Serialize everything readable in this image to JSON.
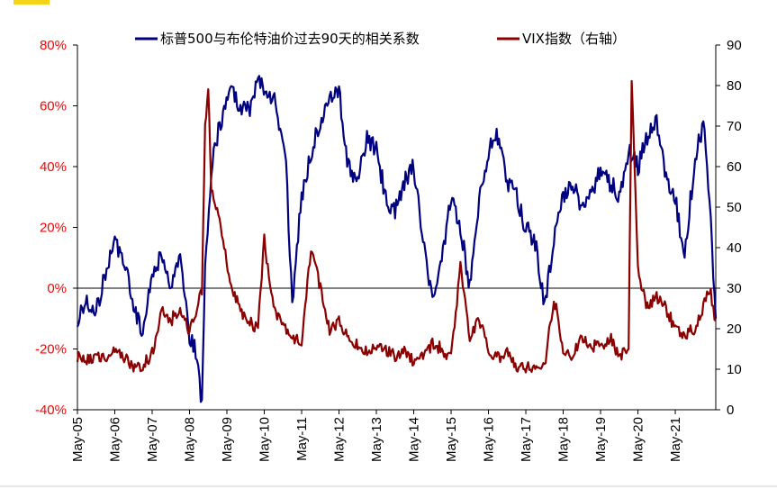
{
  "chart_data": {
    "type": "line",
    "title": "",
    "legend_position": "top",
    "grid": false,
    "x_tick_labels": [
      "May-05",
      "May-06",
      "May-07",
      "May-08",
      "May-09",
      "May-10",
      "May-11",
      "May-12",
      "May-13",
      "May-14",
      "May-15",
      "May-16",
      "May-17",
      "May-18",
      "May-19",
      "May-20",
      "May-21"
    ],
    "x_range": [
      "2005-05",
      "2022-06"
    ],
    "y_left": {
      "ticks": [
        "-40%",
        "-20%",
        "0%",
        "20%",
        "40%",
        "60%",
        "80%"
      ],
      "tick_values": [
        -40,
        -20,
        0,
        20,
        40,
        60,
        80
      ],
      "range": [
        -40,
        80
      ],
      "tick_color": "#ff0000"
    },
    "y_right": {
      "ticks": [
        "0",
        "10",
        "20",
        "30",
        "40",
        "50",
        "60",
        "70",
        "80",
        "90"
      ],
      "tick_values": [
        0,
        10,
        20,
        30,
        40,
        50,
        60,
        70,
        80,
        90
      ],
      "range": [
        0,
        90
      ]
    },
    "series": [
      {
        "name": "标普500与布伦特油价过去90天的相关系数",
        "axis": "left",
        "color": "#000080",
        "x": [
          "2005-05",
          "2005-08",
          "2005-11",
          "2006-02",
          "2006-05",
          "2006-08",
          "2006-11",
          "2007-02",
          "2007-05",
          "2007-08",
          "2007-11",
          "2008-02",
          "2008-05",
          "2008-07",
          "2008-09",
          "2008-10",
          "2008-12",
          "2009-03",
          "2009-06",
          "2009-09",
          "2009-12",
          "2010-03",
          "2010-06",
          "2010-09",
          "2010-12",
          "2011-02",
          "2011-05",
          "2011-08",
          "2011-11",
          "2012-02",
          "2012-05",
          "2012-08",
          "2012-11",
          "2013-02",
          "2013-05",
          "2013-08",
          "2013-11",
          "2014-02",
          "2014-05",
          "2014-08",
          "2014-11",
          "2015-02",
          "2015-05",
          "2015-08",
          "2015-11",
          "2016-02",
          "2016-05",
          "2016-08",
          "2016-11",
          "2017-02",
          "2017-05",
          "2017-08",
          "2017-11",
          "2018-02",
          "2018-05",
          "2018-08",
          "2018-11",
          "2019-02",
          "2019-05",
          "2019-08",
          "2019-11",
          "2020-02",
          "2020-05",
          "2020-08",
          "2020-11",
          "2021-02",
          "2021-05",
          "2021-08",
          "2021-11",
          "2022-02",
          "2022-04",
          "2022-06"
        ],
        "values": [
          -10,
          -5,
          -8,
          5,
          15,
          10,
          -5,
          -15,
          5,
          10,
          0,
          10,
          -15,
          -20,
          -38,
          5,
          40,
          55,
          65,
          60,
          58,
          68,
          65,
          60,
          40,
          -5,
          30,
          45,
          55,
          62,
          65,
          40,
          35,
          50,
          45,
          30,
          25,
          35,
          40,
          15,
          -5,
          10,
          30,
          20,
          0,
          30,
          45,
          50,
          35,
          30,
          20,
          15,
          -5,
          15,
          30,
          35,
          25,
          30,
          40,
          35,
          30,
          45,
          40,
          50,
          55,
          35,
          30,
          10,
          40,
          55,
          30,
          -10
        ]
      },
      {
        "name": "VIX指数（右轴）",
        "axis": "right",
        "color": "#8b0000",
        "x": [
          "2005-05",
          "2005-08",
          "2005-11",
          "2006-02",
          "2006-05",
          "2006-08",
          "2006-11",
          "2007-02",
          "2007-05",
          "2007-08",
          "2007-11",
          "2008-02",
          "2008-05",
          "2008-07",
          "2008-09",
          "2008-10",
          "2008-11",
          "2008-12",
          "2009-03",
          "2009-06",
          "2009-09",
          "2009-12",
          "2010-03",
          "2010-05",
          "2010-08",
          "2010-11",
          "2011-02",
          "2011-05",
          "2011-08",
          "2011-11",
          "2012-02",
          "2012-05",
          "2012-08",
          "2012-11",
          "2013-02",
          "2013-05",
          "2013-08",
          "2013-11",
          "2014-02",
          "2014-05",
          "2014-08",
          "2014-11",
          "2015-02",
          "2015-05",
          "2015-08",
          "2015-11",
          "2016-02",
          "2016-05",
          "2016-08",
          "2016-11",
          "2017-02",
          "2017-05",
          "2017-08",
          "2017-11",
          "2018-02",
          "2018-05",
          "2018-08",
          "2018-11",
          "2019-02",
          "2019-05",
          "2019-08",
          "2019-11",
          "2020-02",
          "2020-03",
          "2020-05",
          "2020-08",
          "2020-11",
          "2021-02",
          "2021-05",
          "2021-08",
          "2021-11",
          "2022-02",
          "2022-04",
          "2022-06"
        ],
        "values": [
          13,
          12,
          14,
          12,
          15,
          13,
          11,
          11,
          14,
          24,
          22,
          25,
          19,
          24,
          30,
          70,
          80,
          55,
          45,
          32,
          25,
          22,
          20,
          42,
          25,
          20,
          18,
          16,
          40,
          30,
          20,
          22,
          17,
          16,
          14,
          15,
          15,
          13,
          15,
          12,
          14,
          16,
          15,
          13,
          35,
          18,
          22,
          15,
          13,
          14,
          11,
          10,
          11,
          10,
          28,
          15,
          13,
          18,
          16,
          15,
          18,
          13,
          15,
          82,
          35,
          25,
          28,
          25,
          20,
          18,
          20,
          25,
          30,
          22
        ]
      }
    ]
  }
}
